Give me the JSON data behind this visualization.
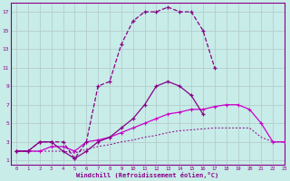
{
  "x_values": [
    0,
    1,
    2,
    3,
    4,
    5,
    6,
    7,
    8,
    9,
    10,
    11,
    12,
    13,
    14,
    15,
    16,
    17,
    18,
    19,
    20,
    21,
    22,
    23
  ],
  "line_main": [
    2.0,
    2.0,
    3.0,
    3.0,
    3.0,
    1.2,
    3.0,
    9.0,
    9.5,
    13.5,
    16.0,
    17.0,
    17.0,
    17.5,
    17.0,
    17.0,
    15.0,
    11.0,
    null,
    null,
    null,
    null,
    null,
    null
  ],
  "line_mid": [
    2.0,
    2.0,
    3.0,
    3.0,
    2.0,
    1.2,
    2.0,
    3.0,
    3.5,
    4.5,
    5.5,
    7.0,
    9.0,
    9.5,
    9.0,
    8.0,
    6.0,
    null,
    null,
    null,
    null,
    null,
    null,
    null
  ],
  "line_upper_flat": [
    2.0,
    2.0,
    2.0,
    2.5,
    2.5,
    2.0,
    3.0,
    3.2,
    3.5,
    4.0,
    4.5,
    5.0,
    5.5,
    6.0,
    6.2,
    6.5,
    6.5,
    6.8,
    7.0,
    7.0,
    6.5,
    5.0,
    3.0,
    3.0
  ],
  "line_lower_flat": [
    2.0,
    2.0,
    2.0,
    2.0,
    2.0,
    1.8,
    2.2,
    2.5,
    2.7,
    3.0,
    3.2,
    3.5,
    3.7,
    4.0,
    4.2,
    4.3,
    4.4,
    4.5,
    4.5,
    4.5,
    4.5,
    3.5,
    3.0,
    3.0
  ],
  "xlabel": "Windchill (Refroidissement éolien,°C)",
  "ylabel_ticks": [
    1,
    3,
    5,
    7,
    9,
    11,
    13,
    15,
    17
  ],
  "ylim": [
    0.5,
    18.0
  ],
  "xlim": [
    -0.5,
    23
  ],
  "bg_color": "#c8ece8",
  "grid_color": "#b0c8c8",
  "color_dark": "#880088",
  "color_bright": "#cc00cc"
}
